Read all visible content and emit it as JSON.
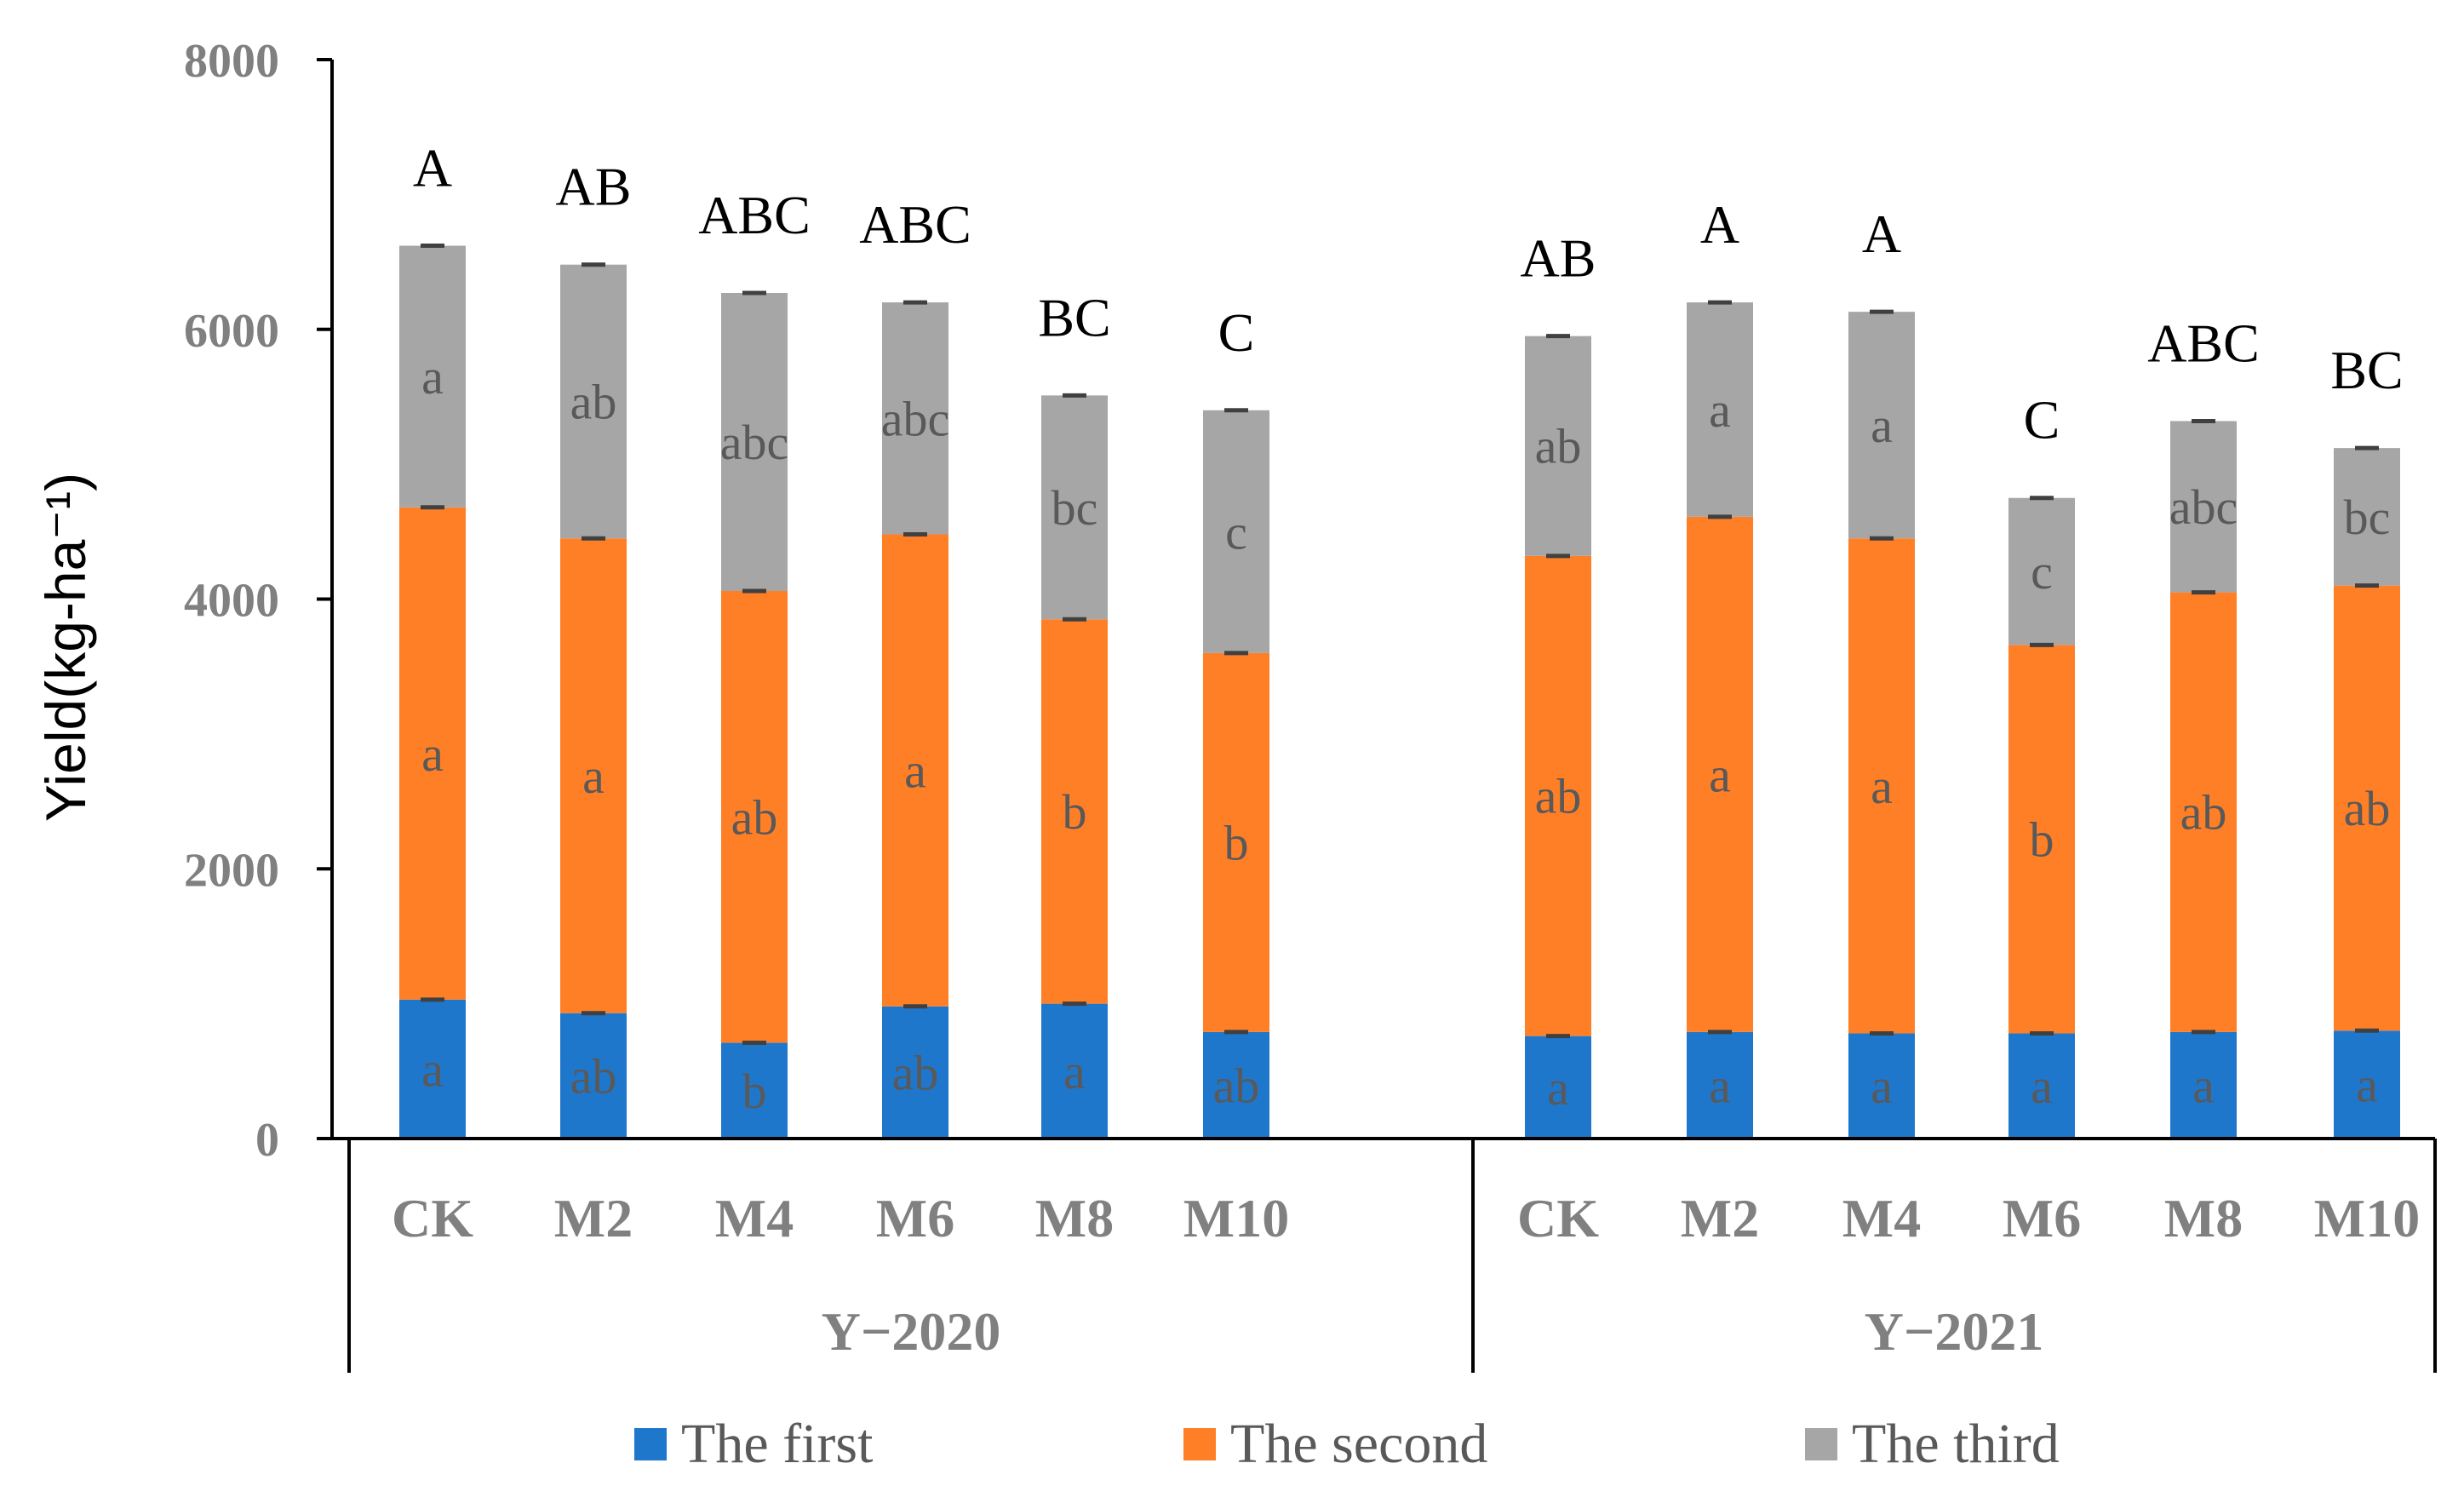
{
  "chart_data": {
    "type": "bar",
    "stacked": true,
    "ylabel": "Yield(kg-ha⁻¹)",
    "ylim": [
      0,
      8000
    ],
    "yticks": [
      0,
      2000,
      4000,
      6000,
      8000
    ],
    "gridlines": false,
    "legend_position": "bottom",
    "groups": [
      {
        "name": "Y−2020",
        "categories": [
          "CK",
          "M2",
          "M4",
          "M6",
          "M8",
          "M10"
        ]
      },
      {
        "name": "Y−2021",
        "categories": [
          "CK",
          "M2",
          "M4",
          "M6",
          "M8",
          "M10"
        ]
      }
    ],
    "series": [
      {
        "name": "The first",
        "color": "#1F77CC",
        "values": [
          1030,
          930,
          710,
          980,
          1000,
          790,
          760,
          790,
          780,
          780,
          790,
          800
        ],
        "labels": [
          "a",
          "ab",
          "b",
          "ab",
          "a",
          "ab",
          "a",
          "a",
          "a",
          "a",
          "a",
          "a"
        ]
      },
      {
        "name": "The second",
        "color": "#FF7F27",
        "values": [
          3650,
          3520,
          3350,
          3500,
          2850,
          2810,
          3560,
          3820,
          3670,
          2880,
          3260,
          3300
        ],
        "labels": [
          "a",
          "a",
          "ab",
          "a",
          "b",
          "b",
          "ab",
          "a",
          "a",
          "b",
          "ab",
          "ab"
        ]
      },
      {
        "name": "The third",
        "color": "#A6A6A6",
        "values": [
          1940,
          2030,
          2210,
          1720,
          1660,
          1800,
          1630,
          1590,
          1680,
          1090,
          1270,
          1020
        ],
        "labels": [
          "a",
          "ab",
          "abc",
          "abc",
          "bc",
          "c",
          "ab",
          "a",
          "a",
          "c",
          "abc",
          "bc"
        ]
      }
    ],
    "totals": [
      6620,
      6480,
      6270,
      6200,
      5510,
      5400,
      5950,
      6200,
      6130,
      4750,
      5320,
      5120
    ],
    "total_labels": [
      "A",
      "AB",
      "ABC",
      "ABC",
      "BC",
      "C",
      "AB",
      "A",
      "A",
      "C",
      "ABC",
      "BC"
    ]
  }
}
